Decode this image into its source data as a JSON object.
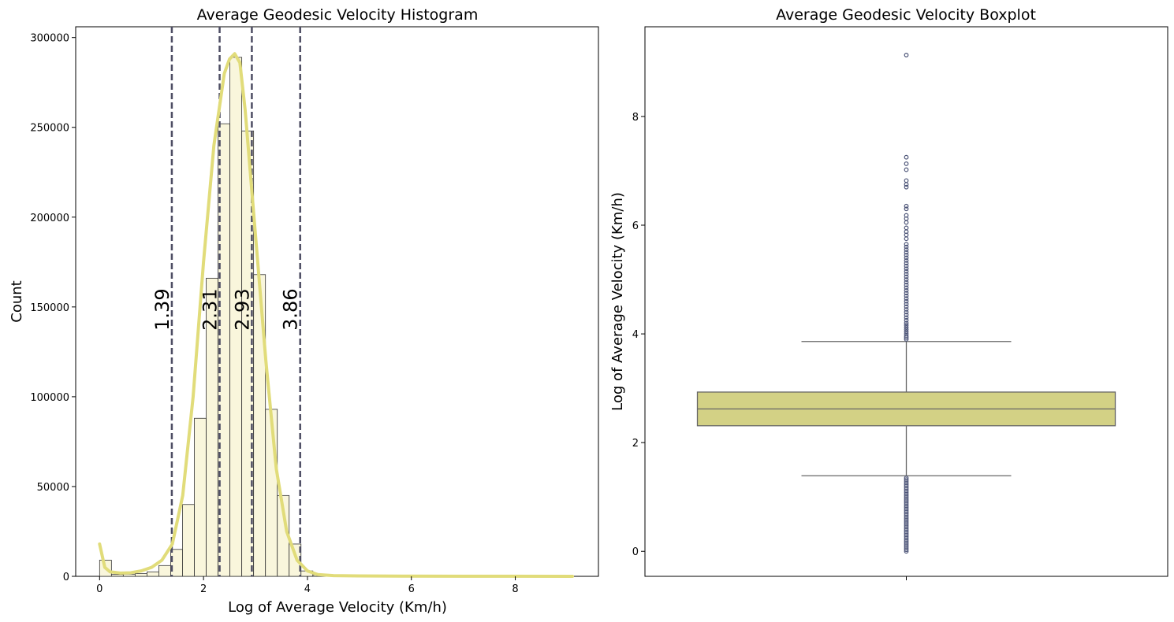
{
  "chart_data": [
    {
      "type": "bar",
      "title": "Average Geodesic Velocity Histogram",
      "xlabel": "Log of Average Velocity (Km/h)",
      "ylabel": "Count",
      "xlim": [
        -0.46,
        9.6
      ],
      "ylim": [
        0,
        306000
      ],
      "xticks": [
        0,
        2,
        4,
        6,
        8
      ],
      "yticks": [
        0,
        50000,
        100000,
        150000,
        200000,
        250000,
        300000
      ],
      "bin_width": 0.228,
      "bins": [
        {
          "x0": 0.0,
          "count": 9000
        },
        {
          "x0": 0.228,
          "count": 1000
        },
        {
          "x0": 0.456,
          "count": 1200
        },
        {
          "x0": 0.684,
          "count": 1500
        },
        {
          "x0": 0.912,
          "count": 2500
        },
        {
          "x0": 1.14,
          "count": 6000
        },
        {
          "x0": 1.368,
          "count": 15000
        },
        {
          "x0": 1.596,
          "count": 40000
        },
        {
          "x0": 1.824,
          "count": 88000
        },
        {
          "x0": 2.052,
          "count": 166000
        },
        {
          "x0": 2.28,
          "count": 252000
        },
        {
          "x0": 2.508,
          "count": 289000
        },
        {
          "x0": 2.736,
          "count": 248000
        },
        {
          "x0": 2.964,
          "count": 168000
        },
        {
          "x0": 3.192,
          "count": 93000
        },
        {
          "x0": 3.42,
          "count": 45000
        },
        {
          "x0": 3.648,
          "count": 18000
        },
        {
          "x0": 3.876,
          "count": 3000
        },
        {
          "x0": 4.104,
          "count": 800
        },
        {
          "x0": 4.332,
          "count": 300
        }
      ],
      "kde": {
        "x": [
          0.0,
          0.1,
          0.2,
          0.4,
          0.6,
          0.8,
          1.0,
          1.2,
          1.4,
          1.6,
          1.8,
          2.0,
          2.2,
          2.4,
          2.5,
          2.6,
          2.7,
          2.8,
          3.0,
          3.2,
          3.4,
          3.6,
          3.8,
          4.0,
          4.2,
          4.5,
          5.0,
          6.0,
          7.0,
          8.0,
          9.1
        ],
        "y": [
          18000,
          5000,
          2500,
          1800,
          2000,
          3000,
          5000,
          9000,
          18000,
          45000,
          100000,
          175000,
          240000,
          280000,
          288000,
          291000,
          286000,
          260000,
          190000,
          120000,
          60000,
          25000,
          9000,
          3000,
          1000,
          400,
          200,
          100,
          60,
          30,
          20
        ]
      },
      "vlines": [
        {
          "x": 1.39,
          "label": "1.39"
        },
        {
          "x": 2.31,
          "label": "2.31"
        },
        {
          "x": 2.93,
          "label": "2.93"
        },
        {
          "x": 3.86,
          "label": "3.86"
        }
      ],
      "label_y": 150000,
      "colors": {
        "bar_fill": "#f9f6dc",
        "bar_edge": "#333333",
        "kde": "#e1dc7a",
        "vline": "#4d4d63"
      }
    },
    {
      "type": "box",
      "title": "Average Geodesic Velocity Boxplot",
      "ylabel": "Log of Average Velocity (Km/h)",
      "ylim": [
        -0.46,
        9.65
      ],
      "yticks": [
        0,
        2,
        4,
        6,
        8
      ],
      "box": {
        "q1": 2.31,
        "median": 2.62,
        "q3": 2.93,
        "whisker_low": 1.39,
        "whisker_high": 3.86
      },
      "outliers_high": [
        3.9,
        3.93,
        3.96,
        4.0,
        4.04,
        4.08,
        4.12,
        4.16,
        4.2,
        4.25,
        4.3,
        4.35,
        4.4,
        4.45,
        4.5,
        4.55,
        4.6,
        4.65,
        4.7,
        4.75,
        4.8,
        4.85,
        4.9,
        4.95,
        5.0,
        5.05,
        5.1,
        5.15,
        5.2,
        5.25,
        5.3,
        5.35,
        5.4,
        5.45,
        5.5,
        5.55,
        5.6,
        5.65,
        5.75,
        5.82,
        5.88,
        5.95,
        6.05,
        6.12,
        6.18,
        6.3,
        6.35,
        6.7,
        6.75,
        6.82,
        7.02,
        7.13,
        7.25,
        9.13
      ],
      "outliers_low": [
        0.0,
        0.03,
        0.06,
        0.09,
        0.12,
        0.15,
        0.18,
        0.21,
        0.24,
        0.27,
        0.3,
        0.33,
        0.36,
        0.39,
        0.42,
        0.45,
        0.48,
        0.51,
        0.54,
        0.57,
        0.6,
        0.63,
        0.66,
        0.69,
        0.72,
        0.75,
        0.78,
        0.81,
        0.84,
        0.87,
        0.9,
        0.93,
        0.96,
        0.99,
        1.02,
        1.05,
        1.08,
        1.11,
        1.14,
        1.17,
        1.2,
        1.23,
        1.26,
        1.29,
        1.32,
        1.35
      ],
      "colors": {
        "box_fill": "#d3d185",
        "line": "#666666",
        "outlier": "#4d5578"
      }
    }
  ]
}
